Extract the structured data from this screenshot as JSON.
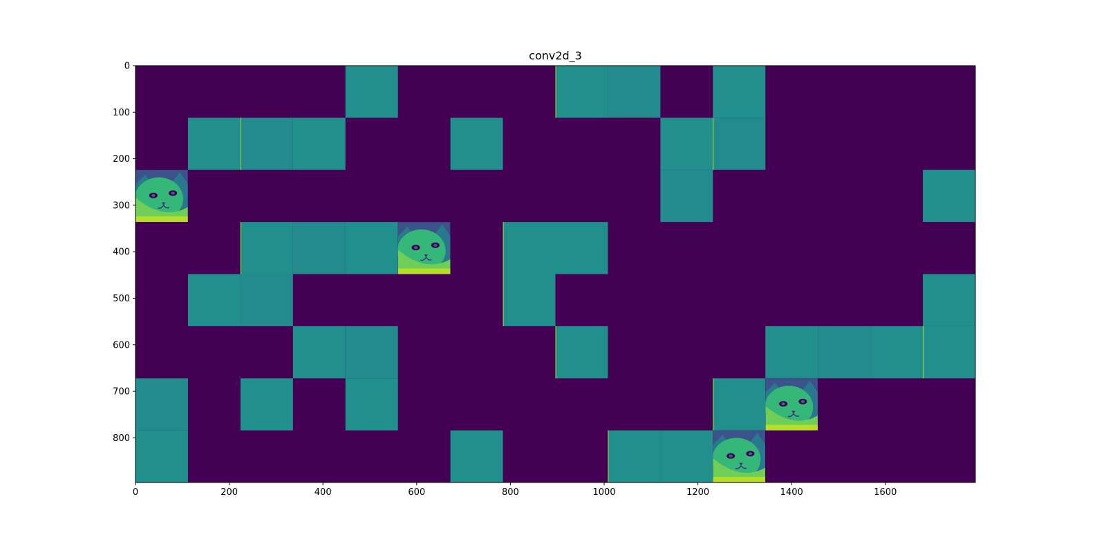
{
  "chart_data": {
    "type": "heatmap",
    "title": "conv2d_3",
    "xlabel": "",
    "ylabel": "",
    "xlim": [
      0,
      1792
    ],
    "ylim": [
      896,
      0
    ],
    "x_ticks": [
      0,
      200,
      400,
      600,
      800,
      1000,
      1200,
      1400,
      1600
    ],
    "y_ticks": [
      0,
      100,
      200,
      300,
      400,
      500,
      600,
      700,
      800
    ],
    "grid": false,
    "colormap": "viridis",
    "colors": {
      "background": "#440154",
      "teal": "#21908d",
      "teal_alt": "#238a8d",
      "highlight": "#b5de2b",
      "edge": "#d8e219"
    },
    "tile_size": 112,
    "grid_shape": [
      8,
      16
    ],
    "tiles": [
      {
        "col": 4,
        "row": 0,
        "kind": "uniform"
      },
      {
        "col": 8,
        "row": 0,
        "kind": "uniform"
      },
      {
        "col": 9,
        "row": 0,
        "kind": "uniform"
      },
      {
        "col": 11,
        "row": 0,
        "kind": "uniform"
      },
      {
        "col": 1,
        "row": 1,
        "kind": "uniform"
      },
      {
        "col": 2,
        "row": 1,
        "kind": "uniform"
      },
      {
        "col": 3,
        "row": 1,
        "kind": "uniform"
      },
      {
        "col": 6,
        "row": 1,
        "kind": "uniform"
      },
      {
        "col": 10,
        "row": 1,
        "kind": "uniform"
      },
      {
        "col": 11,
        "row": 1,
        "kind": "uniform"
      },
      {
        "col": 0,
        "row": 2,
        "kind": "image"
      },
      {
        "col": 10,
        "row": 2,
        "kind": "uniform"
      },
      {
        "col": 15,
        "row": 2,
        "kind": "uniform"
      },
      {
        "col": 2,
        "row": 3,
        "kind": "uniform"
      },
      {
        "col": 3,
        "row": 3,
        "kind": "uniform"
      },
      {
        "col": 4,
        "row": 3,
        "kind": "uniform"
      },
      {
        "col": 5,
        "row": 3,
        "kind": "image"
      },
      {
        "col": 7,
        "row": 3,
        "kind": "uniform"
      },
      {
        "col": 8,
        "row": 3,
        "kind": "uniform"
      },
      {
        "col": 1,
        "row": 4,
        "kind": "uniform"
      },
      {
        "col": 2,
        "row": 4,
        "kind": "uniform"
      },
      {
        "col": 7,
        "row": 4,
        "kind": "uniform"
      },
      {
        "col": 15,
        "row": 4,
        "kind": "uniform"
      },
      {
        "col": 3,
        "row": 5,
        "kind": "uniform"
      },
      {
        "col": 4,
        "row": 5,
        "kind": "uniform"
      },
      {
        "col": 8,
        "row": 5,
        "kind": "uniform"
      },
      {
        "col": 12,
        "row": 5,
        "kind": "uniform"
      },
      {
        "col": 13,
        "row": 5,
        "kind": "uniform"
      },
      {
        "col": 14,
        "row": 5,
        "kind": "uniform"
      },
      {
        "col": 15,
        "row": 5,
        "kind": "uniform"
      },
      {
        "col": 0,
        "row": 6,
        "kind": "uniform"
      },
      {
        "col": 2,
        "row": 6,
        "kind": "uniform"
      },
      {
        "col": 4,
        "row": 6,
        "kind": "uniform"
      },
      {
        "col": 11,
        "row": 6,
        "kind": "uniform"
      },
      {
        "col": 12,
        "row": 6,
        "kind": "image"
      },
      {
        "col": 0,
        "row": 7,
        "kind": "uniform"
      },
      {
        "col": 6,
        "row": 7,
        "kind": "uniform"
      },
      {
        "col": 9,
        "row": 7,
        "kind": "uniform"
      },
      {
        "col": 10,
        "row": 7,
        "kind": "uniform"
      },
      {
        "col": 11,
        "row": 7,
        "kind": "image"
      }
    ]
  }
}
